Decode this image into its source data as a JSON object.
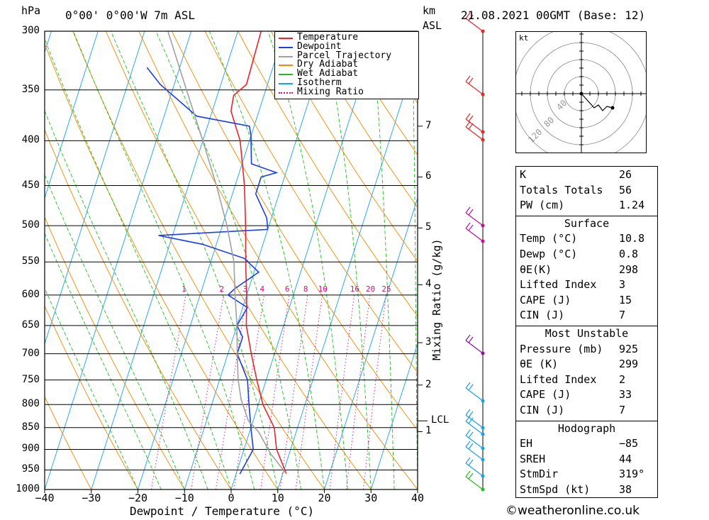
{
  "header": {
    "pressure_unit": "hPa",
    "location": "0°00' 0°00'W  7m  ASL",
    "km_unit": "km",
    "km_unit2": "ASL",
    "date": "21.08.2021  00GMT  (Base: 12)"
  },
  "colors": {
    "temperature": "#e8252a",
    "dewpoint": "#1d3ee0",
    "parcel": "#a0a0a0",
    "dry_adiabat": "#f08a00",
    "wet_adiabat": "#1fbf1f",
    "isotherm": "#1aa0e8",
    "mixing_ratio": "#d0107a"
  },
  "chart_data": {
    "type": "line",
    "xlabel": "Dewpoint / Temperature (°C)",
    "ylabel": "hPa",
    "mixing_ratio_axis_label": "Mixing Ratio (g/kg)",
    "x_range": [
      -40,
      40
    ],
    "pressure_range": [
      300,
      1000
    ],
    "x_ticks": [
      "−40",
      "−30",
      "−20",
      "−10",
      "0",
      "10",
      "20",
      "30",
      "40"
    ],
    "pressure_ticks": [
      300,
      350,
      400,
      450,
      500,
      550,
      600,
      650,
      700,
      750,
      800,
      850,
      900,
      950,
      1000
    ],
    "km_ticks": [
      {
        "label": "7",
        "p": 385
      },
      {
        "label": "6",
        "p": 440
      },
      {
        "label": "5",
        "p": 503
      },
      {
        "label": "4",
        "p": 584
      },
      {
        "label": "3",
        "p": 680
      },
      {
        "label": "2",
        "p": 760
      },
      {
        "label": "1",
        "p": 859
      }
    ],
    "lcl": {
      "label": "LCL",
      "p": 835
    },
    "mixing_ratio_labels": [
      "1",
      "2",
      "3",
      "4",
      "6",
      "8",
      "10",
      "16",
      "20",
      "25"
    ],
    "mixing_ratio_values": [
      1,
      2,
      3,
      4,
      6,
      8,
      10,
      16,
      20,
      25
    ],
    "legend": [
      "Temperature",
      "Dewpoint",
      "Parcel Trajectory",
      "Dry Adiabat",
      "Wet Adiabat",
      "Isotherm",
      "Mixing Ratio"
    ],
    "series": [
      {
        "name": "Temperature",
        "points": [
          [
            10.8,
            960
          ],
          [
            7,
            900
          ],
          [
            5,
            850
          ],
          [
            1,
            800
          ],
          [
            -2,
            750
          ],
          [
            -5,
            700
          ],
          [
            -8,
            650
          ],
          [
            -10,
            600
          ],
          [
            -12,
            560
          ],
          [
            -15,
            500
          ],
          [
            -18,
            450
          ],
          [
            -22,
            400
          ],
          [
            -26,
            370
          ],
          [
            -26.5,
            355
          ],
          [
            -24.5,
            345
          ],
          [
            -25,
            300
          ]
        ]
      },
      {
        "name": "Dewpoint",
        "points": [
          [
            0.8,
            960
          ],
          [
            2,
            900
          ],
          [
            0,
            850
          ],
          [
            -2,
            800
          ],
          [
            -4,
            750
          ],
          [
            -8,
            700
          ],
          [
            -8,
            670
          ],
          [
            -10,
            650
          ],
          [
            -9,
            620
          ],
          [
            -14,
            600
          ],
          [
            -13,
            590
          ],
          [
            -9,
            565
          ],
          [
            -13,
            545
          ],
          [
            -23,
            525
          ],
          [
            -33,
            513
          ],
          [
            -10,
            505
          ],
          [
            -11,
            490
          ],
          [
            -15,
            460
          ],
          [
            -15,
            440
          ],
          [
            -12,
            435
          ],
          [
            -18,
            425
          ],
          [
            -20,
            395
          ],
          [
            -21,
            385
          ],
          [
            -33,
            375
          ],
          [
            -43,
            345
          ],
          [
            -47,
            330
          ]
        ]
      },
      {
        "name": "Parcel Trajectory",
        "points": [
          [
            10.8,
            960
          ],
          [
            6,
            910
          ],
          [
            2,
            860
          ],
          [
            -1,
            835
          ],
          [
            -4,
            790
          ],
          [
            -6,
            750
          ],
          [
            -8,
            700
          ],
          [
            -10,
            650
          ],
          [
            -12.5,
            600
          ],
          [
            -15,
            550
          ],
          [
            -19,
            500
          ],
          [
            -24,
            450
          ],
          [
            -30,
            400
          ],
          [
            -37,
            350
          ],
          [
            -45,
            300
          ]
        ]
      }
    ]
  },
  "hodograph": {
    "unit": "kt",
    "ring_labels": [
      "40",
      "80",
      "120"
    ]
  },
  "indices": [
    {
      "label": "K",
      "value": "26"
    },
    {
      "label": "Totals Totals",
      "value": "56"
    },
    {
      "label": "PW (cm)",
      "value": "1.24"
    }
  ],
  "surface": {
    "title": "Surface",
    "rows": [
      {
        "label": "Temp (°C)",
        "value": "10.8"
      },
      {
        "label": "Dewp (°C)",
        "value": "0.8"
      },
      {
        "label": "θE(K)",
        "value": "298"
      },
      {
        "label": "Lifted Index",
        "value": "3"
      },
      {
        "label": "CAPE (J)",
        "value": "15"
      },
      {
        "label": "CIN (J)",
        "value": "7"
      }
    ]
  },
  "most_unstable": {
    "title": "Most Unstable",
    "rows": [
      {
        "label": "Pressure (mb)",
        "value": "925"
      },
      {
        "label": "θE (K)",
        "value": "299"
      },
      {
        "label": "Lifted Index",
        "value": "2"
      },
      {
        "label": "CAPE (J)",
        "value": "33"
      },
      {
        "label": "CIN (J)",
        "value": "7"
      }
    ]
  },
  "hodograph_stats": {
    "title": "Hodograph",
    "rows": [
      {
        "label": "EH",
        "value": "−85"
      },
      {
        "label": "SREH",
        "value": "44"
      },
      {
        "label": "StmDir",
        "value": "319°"
      },
      {
        "label": "StmSpd (kt)",
        "value": "38"
      }
    ]
  },
  "footer": {
    "credit": "©weatheronline.co.uk"
  }
}
